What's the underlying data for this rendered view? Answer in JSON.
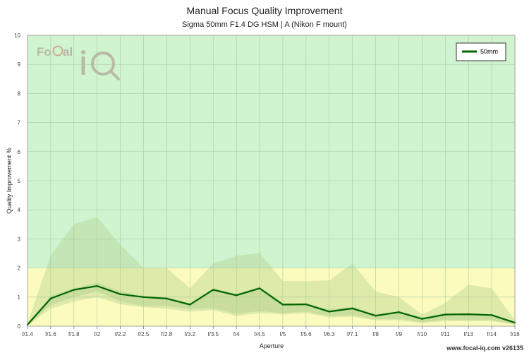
{
  "chart_data": {
    "type": "line",
    "title": "Manual Focus Quality Improvement",
    "subtitle": "Sigma 50mm F1.4 DG HSM | A (Nikon F mount)",
    "xlabel": "Aperture",
    "ylabel": "Quality Improvement %",
    "ylim": [
      0,
      10
    ],
    "yticks": [
      "0",
      "1",
      "2",
      "3",
      "4",
      "5",
      "6",
      "7",
      "8",
      "9",
      "10"
    ],
    "categories": [
      "f/1.4",
      "f/1.6",
      "f/1.8",
      "f/2",
      "f/2.2",
      "f/2.5",
      "f/2.8",
      "f/3.2",
      "f/3.5",
      "f/4",
      "f/4.5",
      "f/5",
      "f/5.6",
      "f/6.3",
      "f/7.1",
      "f/8",
      "f/9",
      "f/10",
      "f/11",
      "f/13",
      "f/14",
      "f/16"
    ],
    "series": [
      {
        "name": "50mm",
        "color": "#006400",
        "values": [
          0.05,
          0.95,
          1.25,
          1.38,
          1.1,
          1.0,
          0.95,
          0.74,
          1.25,
          1.06,
          1.3,
          0.74,
          0.75,
          0.5,
          0.61,
          0.36,
          0.48,
          0.25,
          0.4,
          0.41,
          0.38,
          0.12
        ]
      }
    ],
    "range_outer": {
      "upper": [
        0.08,
        2.45,
        3.5,
        3.75,
        2.8,
        2.0,
        2.0,
        1.3,
        2.15,
        2.42,
        2.52,
        1.55,
        1.55,
        1.57,
        2.15,
        1.2,
        1.0,
        0.4,
        0.8,
        1.42,
        1.3,
        0.2
      ],
      "lower": [
        0.02,
        0.6,
        0.85,
        1.0,
        0.75,
        0.65,
        0.6,
        0.5,
        0.55,
        0.35,
        0.45,
        0.4,
        0.45,
        0.3,
        0.32,
        0.2,
        0.2,
        0.1,
        0.18,
        0.18,
        0.18,
        0.05
      ]
    },
    "range_inner": {
      "upper": [
        0.06,
        1.05,
        1.3,
        1.5,
        1.2,
        1.05,
        1.0,
        0.8,
        1.3,
        1.12,
        1.35,
        0.8,
        0.8,
        0.58,
        0.68,
        0.42,
        0.52,
        0.3,
        0.45,
        0.45,
        0.42,
        0.15
      ],
      "lower": [
        0.04,
        0.72,
        1.0,
        1.2,
        0.85,
        0.7,
        0.7,
        0.58,
        0.62,
        0.42,
        0.52,
        0.45,
        0.5,
        0.35,
        0.38,
        0.24,
        0.25,
        0.14,
        0.22,
        0.2,
        0.2,
        0.07
      ]
    },
    "bands": [
      {
        "from": 0,
        "to": 2,
        "color": "#fbfbbe"
      },
      {
        "from": 2,
        "to": 10,
        "color": "#d0f4d0"
      }
    ],
    "grid": true,
    "legend_position": "top-right"
  },
  "watermark": {
    "logo_text_left": "Fo",
    "logo_text_right": "al",
    "logo_iq": "iQ",
    "footer": "www.focal-iq.com  v26135"
  },
  "colors": {
    "band_green": "#d0f4d0",
    "band_yellow": "#fbfbbe",
    "line": "#006400",
    "range": "#aacc88"
  }
}
